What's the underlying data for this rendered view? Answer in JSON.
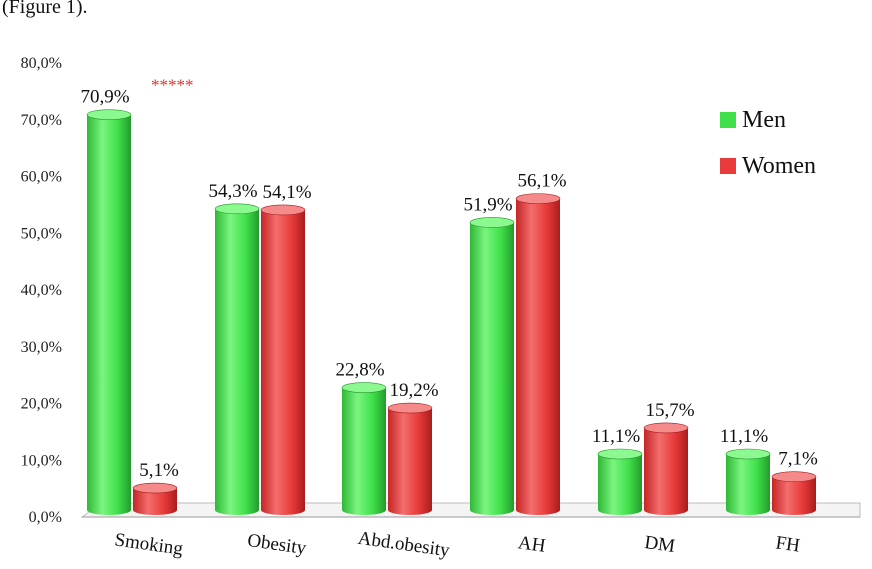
{
  "caption": "(Figure 1).",
  "chart_data": {
    "type": "bar",
    "categories": [
      "Smoking",
      "Obesity",
      "Abd.obesity",
      "AH",
      "DM",
      "FH"
    ],
    "series": [
      {
        "name": "Men",
        "color": "#3fe04a",
        "values": [
          70.9,
          54.3,
          22.8,
          51.9,
          11.1,
          11.1
        ],
        "labels": [
          "70,9%",
          "54,3%",
          "22,8%",
          "51,9%",
          "11,1%",
          "11,1%"
        ]
      },
      {
        "name": "Women",
        "color": "#e83a3a",
        "values": [
          5.1,
          54.1,
          19.2,
          56.1,
          15.7,
          7.1
        ],
        "labels": [
          "5,1%",
          "54,1%",
          "19,2%",
          "56,1%",
          "15,7%",
          "7,1%"
        ]
      }
    ],
    "ylim": [
      0,
      80
    ],
    "yticks": [
      "0,0%",
      "10,0%",
      "20,0%",
      "30,0%",
      "40,0%",
      "50,0%",
      "60,0%",
      "70,0%",
      "80,0%"
    ],
    "annotations": [
      {
        "text": "*****",
        "category": "Smoking",
        "series": "Men",
        "color": "#e0302a"
      }
    ],
    "legend_position": "top-right",
    "grid": false,
    "xlabel": "",
    "ylabel": "",
    "title": ""
  }
}
